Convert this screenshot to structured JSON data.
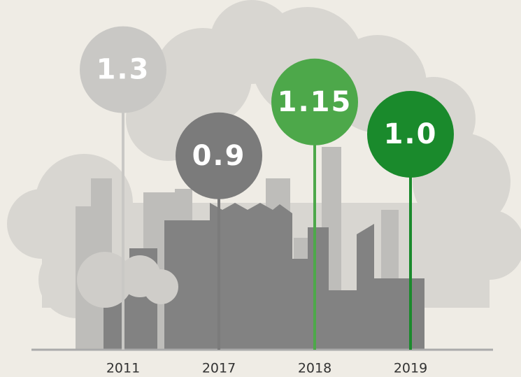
{
  "chart_data": {
    "type": "lollipop",
    "categories": [
      "2011",
      "2017",
      "2018",
      "2019"
    ],
    "values": [
      1.3,
      0.9,
      1.15,
      1
    ],
    "value_labels": [
      "1.3",
      "0.9",
      "1.15",
      "1.0"
    ],
    "colors": [
      "#c9c8c5",
      "#7b7b7b",
      "#4da84a",
      "#1a8a2c"
    ]
  }
}
